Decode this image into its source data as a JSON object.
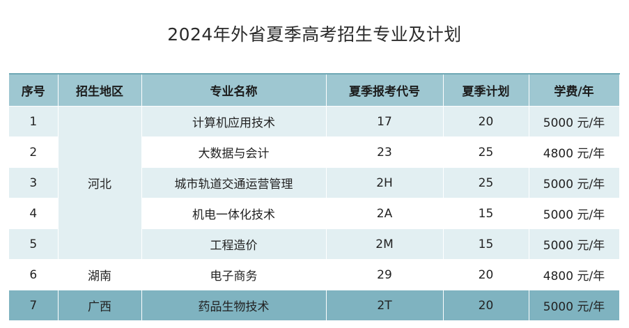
{
  "title": "2024年外省夏季高考招生专业及计划",
  "headers": [
    "序号",
    "招生地区",
    "专业名称",
    "夏季报考代号",
    "夏季计划",
    "学费/年"
  ],
  "rows": [
    {
      "no": "1",
      "region": "河北",
      "major": "计算机应用技术",
      "code": "17",
      "plan": "20",
      "fee": "5000 元/年"
    },
    {
      "no": "2",
      "region": "",
      "major": "大数据与会计",
      "code": "23",
      "plan": "25",
      "fee": "4800 元/年"
    },
    {
      "no": "3",
      "region": "",
      "major": "城市轨道交通运营管理",
      "code": "2H",
      "plan": "25",
      "fee": "5000 元/年"
    },
    {
      "no": "4",
      "region": "",
      "major": "机电一体化技术",
      "code": "2A",
      "plan": "15",
      "fee": "5000 元/年"
    },
    {
      "no": "5",
      "region": "",
      "major": "工程造价",
      "code": "2M",
      "plan": "15",
      "fee": "5000 元/年"
    },
    {
      "no": "6",
      "region": "湖南",
      "major": "电子商务",
      "code": "29",
      "plan": "20",
      "fee": "4800 元/年"
    },
    {
      "no": "7",
      "region": "广西",
      "major": "药品生物技术",
      "code": "2T",
      "plan": "20",
      "fee": "5000 元/年"
    }
  ],
  "colors": {
    "header": "#9ec7d1",
    "light_row": "#e2eff2",
    "highlight_row": "#7fb3c0"
  }
}
